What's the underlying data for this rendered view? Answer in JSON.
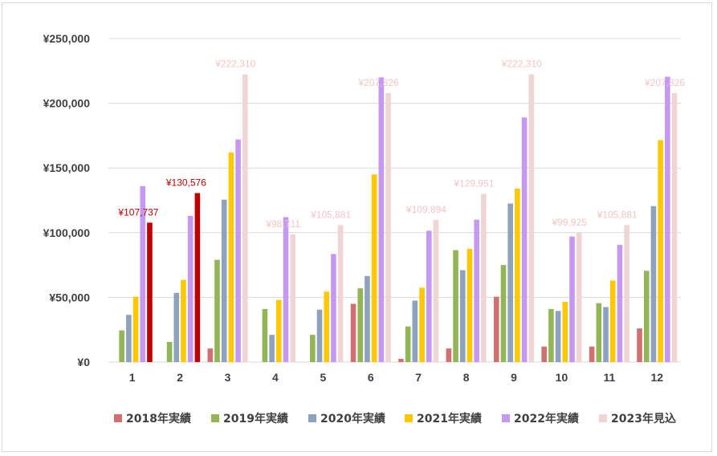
{
  "chart_data": {
    "type": "bar",
    "categories": [
      "1",
      "2",
      "3",
      "4",
      "5",
      "6",
      "7",
      "8",
      "9",
      "10",
      "11",
      "12"
    ],
    "ylim": [
      0,
      250000
    ],
    "yticks": [
      0,
      50000,
      100000,
      150000,
      200000,
      250000
    ],
    "ytick_labels": [
      "¥0",
      "¥50,000",
      "¥100,000",
      "¥150,000",
      "¥200,000",
      "¥250,000"
    ],
    "grid": true,
    "legend_position": "bottom",
    "series": [
      {
        "name": "2018年実績",
        "color": "#d07070",
        "values": [
          0,
          0,
          10500,
          0,
          0,
          45000,
          2500,
          10500,
          50500,
          12000,
          12000,
          26000
        ]
      },
      {
        "name": "2019年実績",
        "color": "#92b656",
        "values": [
          24500,
          15500,
          79000,
          41000,
          21000,
          57000,
          27500,
          86500,
          75000,
          41000,
          45500,
          70500
        ]
      },
      {
        "name": "2020年実績",
        "color": "#8ea2be",
        "values": [
          36500,
          53500,
          125500,
          21000,
          40500,
          66500,
          47500,
          71000,
          122500,
          39500,
          42500,
          120500
        ]
      },
      {
        "name": "2021年実績",
        "color": "#ffc800",
        "values": [
          50500,
          63500,
          162000,
          48000,
          54500,
          145000,
          57500,
          87500,
          134000,
          46500,
          63000,
          171500
        ]
      },
      {
        "name": "2022年実績",
        "color": "#c599f2",
        "values": [
          136000,
          113000,
          172000,
          112000,
          83500,
          220000,
          101500,
          110000,
          189000,
          97000,
          90500,
          220500
        ]
      },
      {
        "name": "2023年見込",
        "color": "#f0d5d5",
        "values": [
          107737,
          130576,
          222310,
          98711,
          105881,
          207826,
          109894,
          129951,
          222310,
          99925,
          105881,
          207826
        ]
      }
    ],
    "highlight": {
      "series": "2023年見込",
      "months": [
        "1",
        "2"
      ],
      "color": "#c00000"
    },
    "data_labels": [
      "¥107,737",
      "¥130,576",
      "¥222,310",
      "¥98,711",
      "¥105,881",
      "¥207,826",
      "¥109,894",
      "¥129,951",
      "¥222,310",
      "¥99,925",
      "¥105,881",
      "¥207,826"
    ],
    "label_colors": {
      "normal": "#f2c5c5",
      "highlight": "#c00000"
    }
  }
}
